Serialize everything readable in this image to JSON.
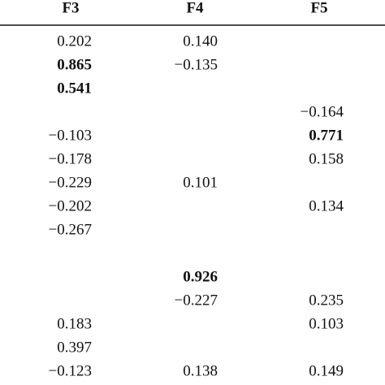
{
  "table": {
    "header": [
      "F3",
      "F4",
      "F5"
    ],
    "rows": [
      [
        "0.202",
        "0.140",
        null
      ],
      [
        "0.865",
        "−0.135",
        null
      ],
      [
        "0.541",
        null,
        null
      ],
      [
        null,
        null,
        "−0.164"
      ],
      [
        "−0.103",
        null,
        "0.771"
      ],
      [
        "−0.178",
        null,
        "0.158"
      ],
      [
        "−0.229",
        "0.101",
        null
      ],
      [
        "−0.202",
        null,
        "0.134"
      ],
      [
        "−0.267",
        null,
        null
      ],
      [
        null,
        null,
        null
      ],
      [
        null,
        "0.926",
        null
      ],
      [
        null,
        "−0.227",
        "0.235"
      ],
      [
        "0.183",
        null,
        "0.103"
      ],
      [
        "0.397",
        null,
        null
      ],
      [
        "−0.123",
        "0.138",
        "0.149"
      ]
    ],
    "bold_cells": [
      [
        1,
        0
      ],
      [
        2,
        0
      ],
      [
        4,
        2
      ],
      [
        10,
        1
      ]
    ]
  }
}
